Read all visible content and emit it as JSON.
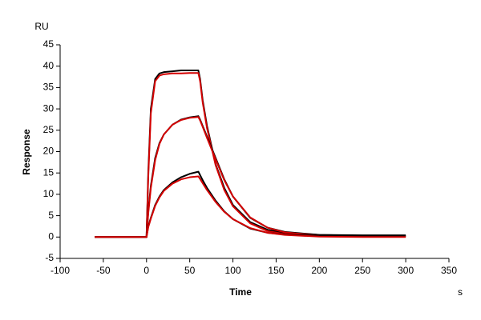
{
  "chart_data": {
    "type": "line",
    "ylabel": "Response",
    "xlabel": "Time",
    "y_unit": "RU",
    "x_unit": "s",
    "x": [
      -60,
      -40,
      -20,
      0,
      2,
      5,
      10,
      15,
      20,
      30,
      40,
      50,
      60,
      62,
      65,
      70,
      80,
      90,
      100,
      120,
      140,
      160,
      200,
      250,
      300
    ],
    "series": [
      {
        "color": "#000000",
        "values": [
          0,
          0,
          0,
          0,
          15,
          30,
          37,
          38.3,
          38.6,
          38.8,
          39,
          39,
          39,
          37,
          32,
          26,
          17,
          11.5,
          7.5,
          3.5,
          1.7,
          1,
          0.5,
          0.4,
          0.4
        ]
      },
      {
        "color": "#d40000",
        "values": [
          0,
          0,
          0,
          0,
          14,
          29,
          36.5,
          37.8,
          38.1,
          38.3,
          38.3,
          38.4,
          38.4,
          36.5,
          31.5,
          25.5,
          16.8,
          11,
          7.2,
          3.2,
          1.4,
          0.7,
          0.2,
          0.1,
          0.1
        ]
      },
      {
        "color": "#000000",
        "values": [
          0,
          0,
          0,
          0,
          6,
          12,
          18.5,
          22,
          24,
          26.3,
          27.5,
          28,
          28.3,
          27.5,
          26,
          23.5,
          18.5,
          13.5,
          9.5,
          4.5,
          2.2,
          1.2,
          0.5,
          0.3,
          0.3
        ]
      },
      {
        "color": "#d40000",
        "values": [
          0,
          0,
          0,
          0,
          5.5,
          11.5,
          18,
          21.8,
          24,
          26.3,
          27.4,
          27.9,
          28.1,
          27.3,
          25.8,
          23.2,
          18.2,
          13.3,
          9.5,
          4.6,
          2.2,
          1.1,
          0.3,
          0.1,
          0.1
        ]
      },
      {
        "color": "#000000",
        "values": [
          0,
          0,
          0,
          0,
          2.5,
          4.5,
          7.5,
          9.5,
          11,
          12.8,
          14,
          14.8,
          15.3,
          14.5,
          13.3,
          11.5,
          8.5,
          6,
          4.2,
          2,
          1,
          0.6,
          0.3,
          0.3,
          0.3
        ]
      },
      {
        "color": "#d40000",
        "values": [
          0,
          0,
          0,
          0,
          2.3,
          4.3,
          7.3,
          9.3,
          10.8,
          12.5,
          13.5,
          14,
          14.2,
          13.6,
          12.6,
          11,
          8.2,
          5.9,
          4.2,
          2.1,
          1,
          0.5,
          0.1,
          0,
          0
        ]
      }
    ],
    "xlim": [
      -100,
      350
    ],
    "xticks": [
      -100,
      -50,
      0,
      50,
      100,
      150,
      200,
      250,
      300,
      350
    ],
    "ylim": [
      -5,
      45
    ],
    "yticks": [
      -5,
      0,
      5,
      10,
      15,
      20,
      25,
      30,
      35,
      40,
      45
    ]
  }
}
